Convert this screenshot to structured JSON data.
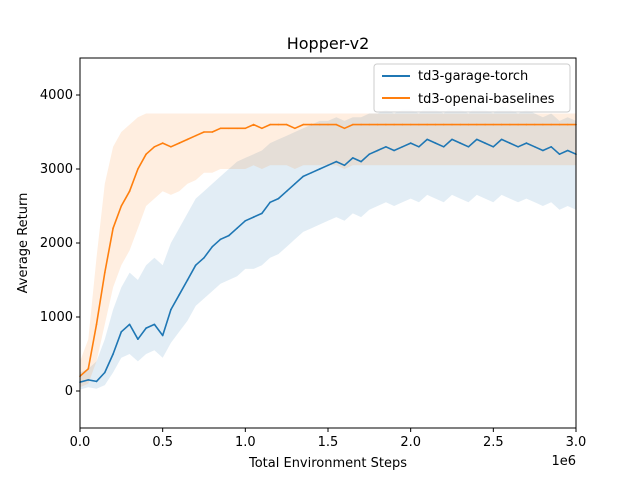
{
  "chart_data": {
    "type": "line",
    "title": "Hopper-v2",
    "xlabel": "Total Environment Steps",
    "ylabel": "Average Return",
    "x_offset_label": "1e6",
    "xlim": [
      0,
      3.0
    ],
    "ylim": [
      -500,
      4500
    ],
    "xticks": [
      0.0,
      0.5,
      1.0,
      1.5,
      2.0,
      2.5,
      3.0
    ],
    "xtick_labels": [
      "0.0",
      "0.5",
      "1.0",
      "1.5",
      "2.0",
      "2.5",
      "3.0"
    ],
    "yticks": [
      0,
      1000,
      2000,
      3000,
      4000
    ],
    "ytick_labels": [
      "0",
      "1000",
      "2000",
      "3000",
      "4000"
    ],
    "grid": false,
    "legend_position": "top-right",
    "series": [
      {
        "name": "td3-garage-torch",
        "color": "#1f77b4",
        "x": [
          0.0,
          0.05,
          0.1,
          0.15,
          0.2,
          0.25,
          0.3,
          0.35,
          0.4,
          0.45,
          0.5,
          0.55,
          0.6,
          0.65,
          0.7,
          0.75,
          0.8,
          0.85,
          0.9,
          0.95,
          1.0,
          1.05,
          1.1,
          1.15,
          1.2,
          1.25,
          1.3,
          1.35,
          1.4,
          1.45,
          1.5,
          1.55,
          1.6,
          1.65,
          1.7,
          1.75,
          1.8,
          1.85,
          1.9,
          1.95,
          2.0,
          2.05,
          2.1,
          2.15,
          2.2,
          2.25,
          2.3,
          2.35,
          2.4,
          2.45,
          2.5,
          2.55,
          2.6,
          2.65,
          2.7,
          2.75,
          2.8,
          2.85,
          2.9,
          2.95,
          3.0
        ],
        "y": [
          120,
          150,
          130,
          250,
          500,
          800,
          900,
          700,
          850,
          900,
          750,
          1100,
          1300,
          1500,
          1700,
          1800,
          1950,
          2050,
          2100,
          2200,
          2300,
          2350,
          2400,
          2550,
          2600,
          2700,
          2800,
          2900,
          2950,
          3000,
          3050,
          3100,
          3050,
          3150,
          3100,
          3200,
          3250,
          3300,
          3250,
          3300,
          3350,
          3300,
          3400,
          3350,
          3300,
          3400,
          3350,
          3300,
          3400,
          3350,
          3300,
          3400,
          3350,
          3300,
          3350,
          3300,
          3250,
          3300,
          3200,
          3250,
          3200
        ],
        "band_low": [
          20,
          50,
          30,
          80,
          250,
          450,
          500,
          400,
          500,
          550,
          450,
          650,
          800,
          950,
          1150,
          1250,
          1350,
          1450,
          1500,
          1550,
          1650,
          1650,
          1700,
          1800,
          1850,
          1950,
          2050,
          2150,
          2200,
          2250,
          2300,
          2350,
          2300,
          2400,
          2350,
          2450,
          2500,
          2550,
          2500,
          2550,
          2600,
          2550,
          2650,
          2600,
          2550,
          2650,
          2600,
          2550,
          2650,
          2600,
          2550,
          2650,
          2600,
          2550,
          2600,
          2550,
          2500,
          2550,
          2450,
          2500,
          2450
        ],
        "band_high": [
          250,
          300,
          400,
          700,
          1100,
          1400,
          1600,
          1500,
          1700,
          1800,
          1700,
          2000,
          2200,
          2400,
          2600,
          2700,
          2800,
          2900,
          3000,
          3100,
          3150,
          3200,
          3250,
          3350,
          3400,
          3450,
          3500,
          3550,
          3600,
          3650,
          3650,
          3700,
          3650,
          3700,
          3700,
          3750,
          3750,
          3800,
          3750,
          3800,
          3800,
          3750,
          3850,
          3800,
          3750,
          3850,
          3800,
          3750,
          3850,
          3800,
          3750,
          3850,
          3800,
          3750,
          3800,
          3750,
          3700,
          3750,
          3650,
          3700,
          3650
        ]
      },
      {
        "name": "td3-openai-baselines",
        "color": "#ff7f0e",
        "x": [
          0.0,
          0.05,
          0.1,
          0.15,
          0.2,
          0.25,
          0.3,
          0.35,
          0.4,
          0.45,
          0.5,
          0.55,
          0.6,
          0.65,
          0.7,
          0.75,
          0.8,
          0.85,
          0.9,
          0.95,
          1.0,
          1.05,
          1.1,
          1.15,
          1.2,
          1.25,
          1.3,
          1.35,
          1.4,
          1.45,
          1.5,
          1.55,
          1.6,
          1.65,
          1.7,
          1.75,
          1.8,
          1.85,
          1.9,
          1.95,
          2.0,
          2.05,
          2.1,
          2.15,
          2.2,
          2.25,
          2.3,
          2.35,
          2.4,
          2.45,
          2.5,
          2.55,
          2.6,
          2.65,
          2.7,
          2.75,
          2.8,
          2.85,
          2.9,
          2.95,
          3.0
        ],
        "y": [
          200,
          300,
          900,
          1600,
          2200,
          2500,
          2700,
          3000,
          3200,
          3300,
          3350,
          3300,
          3350,
          3400,
          3450,
          3500,
          3500,
          3550,
          3550,
          3550,
          3550,
          3600,
          3550,
          3600,
          3600,
          3600,
          3550,
          3600,
          3600,
          3600,
          3600,
          3600,
          3550,
          3600,
          3600,
          3600,
          3600,
          3600,
          3600,
          3600,
          3600,
          3600,
          3600,
          3600,
          3600,
          3600,
          3600,
          3600,
          3600,
          3600,
          3600,
          3600,
          3600,
          3600,
          3600,
          3600,
          3600,
          3600,
          3600,
          3600,
          3600
        ],
        "band_low": [
          50,
          100,
          400,
          900,
          1400,
          1700,
          1900,
          2200,
          2500,
          2600,
          2700,
          2650,
          2700,
          2800,
          2850,
          2950,
          2950,
          3000,
          3000,
          3000,
          3000,
          3050,
          3000,
          3050,
          3050,
          3050,
          3000,
          3050,
          3050,
          3050,
          3050,
          3050,
          3000,
          3050,
          3050,
          3050,
          3050,
          3050,
          3050,
          3050,
          3050,
          3050,
          3050,
          3050,
          3050,
          3050,
          3050,
          3050,
          3050,
          3050,
          3050,
          3050,
          3050,
          3050,
          3050,
          3050,
          3050,
          3050,
          3050,
          3050,
          3050
        ],
        "band_high": [
          400,
          700,
          1800,
          2800,
          3300,
          3500,
          3600,
          3700,
          3750,
          3750,
          3750,
          3750,
          3750,
          3750,
          3750,
          3750,
          3750,
          3750,
          3750,
          3750,
          3750,
          3750,
          3750,
          3750,
          3750,
          3750,
          3750,
          3750,
          3750,
          3750,
          3750,
          3750,
          3750,
          3750,
          3750,
          3750,
          3750,
          3750,
          3750,
          3750,
          3750,
          3750,
          3750,
          3750,
          3750,
          3750,
          3750,
          3750,
          3750,
          3750,
          3750,
          3750,
          3750,
          3750,
          3750,
          3750,
          3750,
          3750,
          3750,
          3750,
          3750
        ]
      }
    ]
  }
}
